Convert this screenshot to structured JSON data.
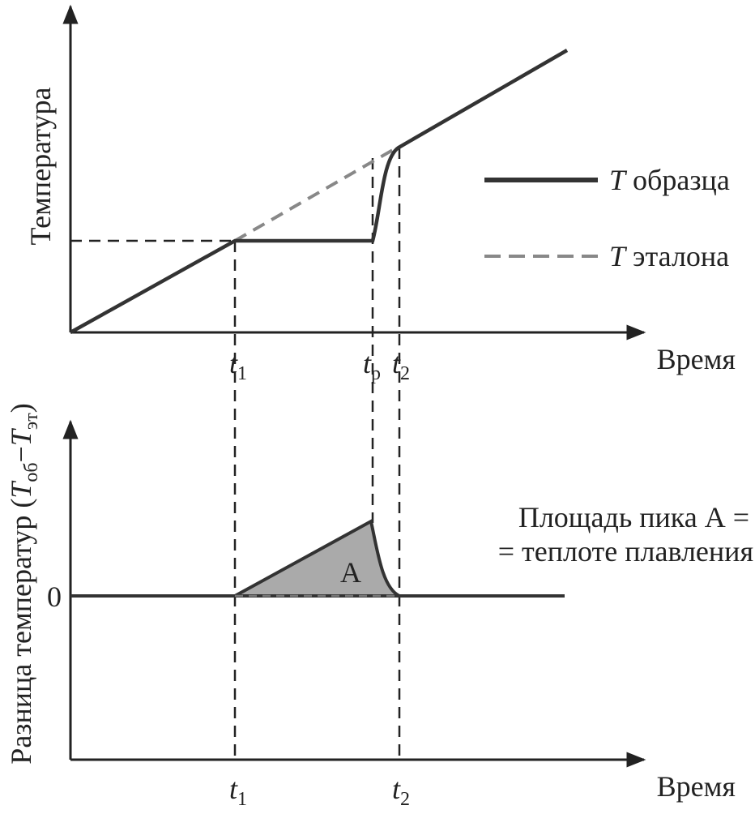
{
  "top": {
    "y_label": "Температура",
    "x_label": "Время",
    "ticks": [
      {
        "var": "t",
        "sub": "1"
      },
      {
        "var": "t",
        "sub": "p"
      },
      {
        "var": "t",
        "sub": "2"
      }
    ],
    "legend": [
      {
        "var": "T",
        "text": "образца"
      },
      {
        "var": "T",
        "text": "эталона"
      }
    ]
  },
  "bottom": {
    "y_label": {
      "text": "Разница температур (",
      "var1": "T",
      "sub1": "об",
      "minus": "−",
      "var2": "T",
      "sub2": "эт",
      "close": ")"
    },
    "x_label": "Время",
    "zero": "0",
    "peak": "A",
    "note": [
      "Площадь пика А =",
      "= теплоте плавления"
    ],
    "ticks": [
      {
        "var": "t",
        "sub": "1"
      },
      {
        "var": "t",
        "sub": "2"
      }
    ]
  }
}
